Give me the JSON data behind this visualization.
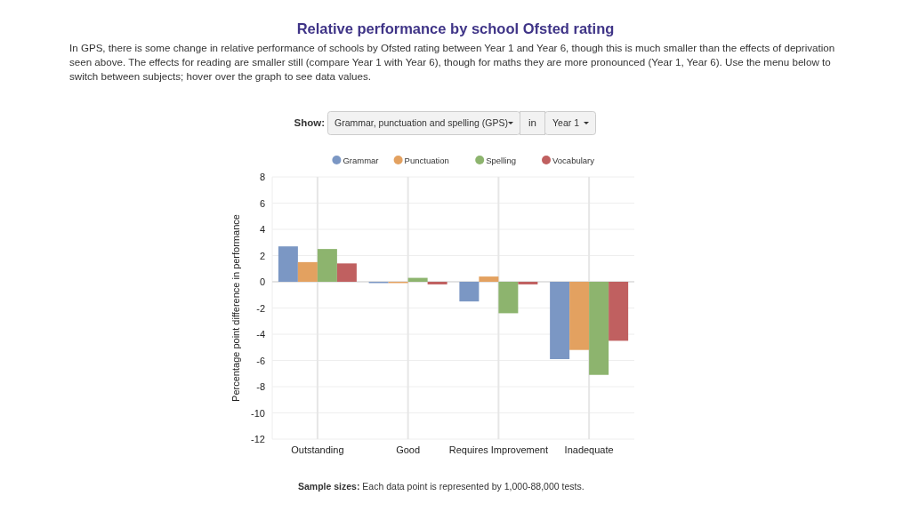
{
  "chart_data": {
    "type": "bar",
    "title": "Relative performance by school Ofsted rating",
    "subtitle": "In GPS, there is some change in relative performance of schools by Ofsted rating between Year 1 and Year 6, though this is much smaller than the effects of deprivation seen above. The effects for reading are smaller still (compare Year 1 with Year 6), though for maths they are more pronounced (Year 1, Year 6). Use the menu below to switch between subjects; hover over the graph to see data values.",
    "annotations": [
      "Show:",
      "Grammar, punctuation and spelling (GPS)",
      "in",
      "Year 1",
      "Sample sizes: Each data point is represented by 1,000-88,000 tests."
    ],
    "ylabel": "Percentage point difference in performance",
    "categories": [
      "Outstanding",
      "Good",
      "Requires Improvement",
      "Inadequate"
    ],
    "series": [
      {
        "name": "Grammar",
        "color": "#7b97c4",
        "values": [
          2.7,
          -0.1,
          -1.5,
          -5.9
        ]
      },
      {
        "name": "Punctuation",
        "color": "#e3a160",
        "values": [
          1.5,
          -0.1,
          0.4,
          -5.2
        ]
      },
      {
        "name": "Spelling",
        "color": "#8db46e",
        "values": [
          2.5,
          0.3,
          -2.4,
          -7.1
        ]
      },
      {
        "name": "Vocabulary",
        "color": "#c06060",
        "values": [
          1.4,
          -0.2,
          -0.2,
          -4.5
        ]
      }
    ],
    "ylim": [
      -12,
      8
    ],
    "yticks": [
      -12,
      -10,
      -8,
      -6,
      -4,
      -2,
      0,
      2,
      4,
      6,
      8
    ],
    "grid": true,
    "legend": "top right"
  }
}
